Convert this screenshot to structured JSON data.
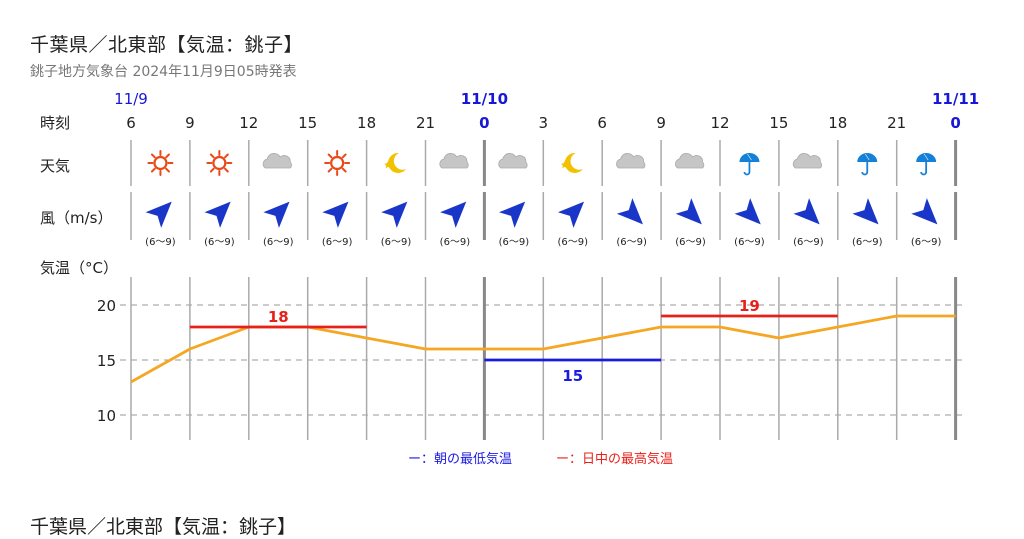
{
  "header": {
    "title": "千葉県／北東部【気温：銚子】",
    "subtitle": "銚子地方気象台 2024年11月9日05時発表"
  },
  "row_labels": {
    "time": "時刻",
    "weather": "天気",
    "wind": "風（m/s）",
    "temp": "気温（°C）"
  },
  "legend": {
    "min": "ー：朝の最低気温",
    "max": "ー：日中の最高気温"
  },
  "colors": {
    "temp_line": "#f5a623",
    "max_line": "#e8201a",
    "min_line": "#1a1ae0",
    "date_text": "#1717d8",
    "sun": "#e84a18",
    "moon": "#f2c200",
    "cloud": "#c6c6c6",
    "umbrella": "#1580d8",
    "arrow": "#1a36c8"
  },
  "chart_data": {
    "type": "line",
    "x": [
      6,
      9,
      12,
      15,
      18,
      21,
      0,
      3,
      6,
      9,
      12,
      15,
      18,
      21,
      0
    ],
    "x_labels": [
      "6",
      "9",
      "12",
      "15",
      "18",
      "21",
      "0",
      "3",
      "6",
      "9",
      "12",
      "15",
      "18",
      "21",
      "0"
    ],
    "dates": [
      {
        "index": 0,
        "label": "11/9"
      },
      {
        "index": 6,
        "label": "11/10"
      },
      {
        "index": 14,
        "label": "11/11"
      }
    ],
    "series": [
      {
        "values": [
          13,
          16,
          18,
          18,
          17,
          16,
          16,
          16,
          17,
          18,
          18,
          17,
          18,
          19,
          19
        ]
      }
    ],
    "max_temps": [
      {
        "from_index": 1,
        "to_index": 4,
        "value": 18,
        "label": "18"
      },
      {
        "from_index": 9,
        "to_index": 12,
        "value": 19,
        "label": "19"
      }
    ],
    "min_temps": [
      {
        "from_index": 6,
        "to_index": 9,
        "value": 15,
        "label": "15"
      }
    ],
    "weather": [
      "sun",
      "sun",
      "cloud",
      "sun",
      "moon",
      "cloud",
      "cloud",
      "moon",
      "cloud",
      "cloud",
      "umbrella",
      "cloud",
      "umbrella",
      "umbrella"
    ],
    "wind_dir": [
      "ne",
      "ne",
      "ne",
      "ne",
      "ne",
      "ne",
      "ne",
      "ne",
      "se",
      "se",
      "se",
      "se",
      "se",
      "se"
    ],
    "wind_speed": [
      "(6〜9)",
      "(6〜9)",
      "(6〜9)",
      "(6〜9)",
      "(6〜9)",
      "(6〜9)",
      "(6〜9)",
      "(6〜9)",
      "(6〜9)",
      "(6〜9)",
      "(6〜9)",
      "(6〜9)",
      "(6〜9)",
      "(6〜9)"
    ],
    "ylim": [
      8,
      23
    ],
    "yticks": [
      10,
      15,
      20
    ],
    "grid": true
  }
}
